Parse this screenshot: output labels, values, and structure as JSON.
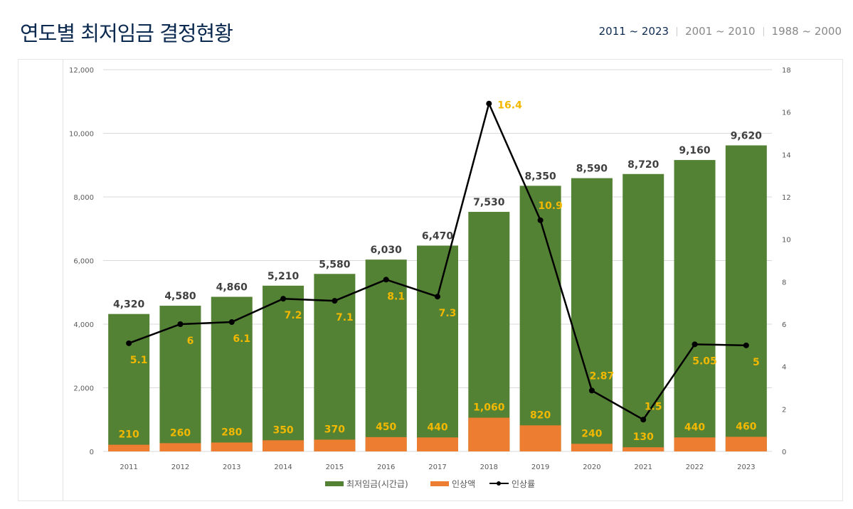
{
  "header": {
    "title": "연도별 최저임금 결정현황"
  },
  "tabs": [
    {
      "label": "2011 ~ 2023",
      "active": true
    },
    {
      "label": "2001 ~ 2010",
      "active": false
    },
    {
      "label": "1988 ~ 2000",
      "active": false
    }
  ],
  "chart_data": {
    "type": "bar+line",
    "categories": [
      "2011",
      "2012",
      "2013",
      "2014",
      "2015",
      "2016",
      "2017",
      "2018",
      "2019",
      "2020",
      "2021",
      "2022",
      "2023"
    ],
    "series": [
      {
        "name": "최저임금(시간급)",
        "type": "bar",
        "axis": "left",
        "color": "#548235",
        "values": [
          4320,
          4580,
          4860,
          5210,
          5580,
          6030,
          6470,
          7530,
          8350,
          8590,
          8720,
          9160,
          9620
        ],
        "labels": [
          "4,320",
          "4,580",
          "4,860",
          "5,210",
          "5,580",
          "6,030",
          "6,470",
          "7,530",
          "8,350",
          "8,590",
          "8,720",
          "9,160",
          "9,620"
        ]
      },
      {
        "name": "인상액",
        "type": "bar",
        "axis": "left",
        "color": "#ED7D31",
        "values": [
          210,
          260,
          280,
          350,
          370,
          450,
          440,
          1060,
          820,
          240,
          130,
          440,
          460
        ],
        "labels": [
          "210",
          "260",
          "280",
          "350",
          "370",
          "450",
          "440",
          "1,060",
          "820",
          "240",
          "130",
          "440",
          "460"
        ]
      },
      {
        "name": "인상률",
        "type": "line",
        "axis": "right",
        "color": "#000000",
        "values": [
          5.1,
          6,
          6.1,
          7.2,
          7.1,
          8.1,
          7.3,
          16.4,
          10.9,
          2.87,
          1.5,
          5.05,
          5
        ],
        "labels": [
          "5.1",
          "6",
          "6.1",
          "7.2",
          "7.1",
          "8.1",
          "7.3",
          "16.4",
          "10.9",
          "2.87",
          "1.5",
          "5.05",
          "5"
        ]
      }
    ],
    "y_left": {
      "range": [
        0,
        12000
      ],
      "ticks": [
        "0",
        "2,000",
        "4,000",
        "6,000",
        "8,000",
        "10,000",
        "12,000"
      ]
    },
    "y_right": {
      "range": [
        0,
        18
      ],
      "ticks": [
        "0",
        "2",
        "4",
        "6",
        "8",
        "10",
        "12",
        "14",
        "16",
        "18"
      ]
    },
    "grid": true,
    "legend": "bottom",
    "label_color": "#F2B800"
  }
}
